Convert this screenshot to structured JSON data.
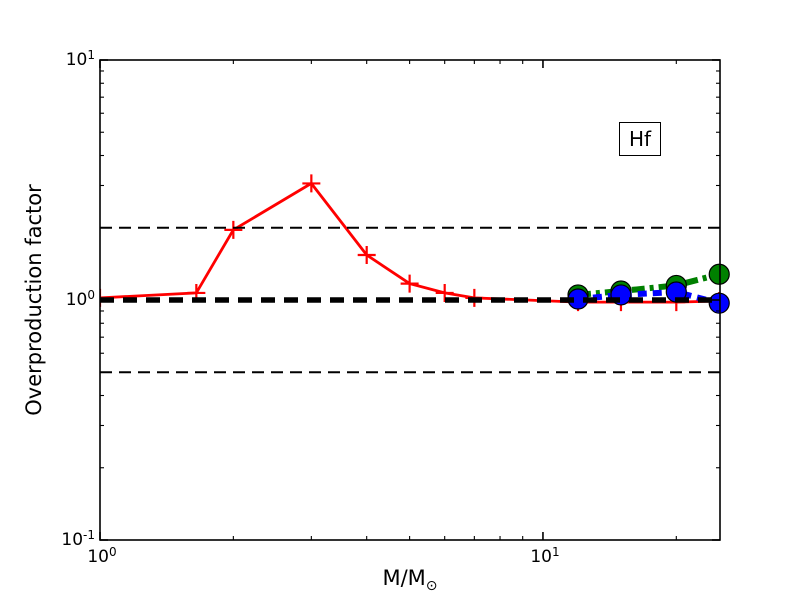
{
  "chart_data": {
    "type": "line",
    "xlabel": {
      "main": "M/M",
      "sub": "⊙"
    },
    "ylabel": "Overproduction factor",
    "x_scale": "log",
    "y_scale": "log",
    "xlim": [
      1,
      25.1
    ],
    "ylim": [
      0.1,
      10
    ],
    "grid": false,
    "legend": "none",
    "annotation": {
      "text": "Hf"
    },
    "x_ticks": {
      "major": [
        1,
        10
      ],
      "minor": [
        2,
        3,
        4,
        5,
        6,
        7,
        8,
        9,
        20
      ],
      "labels": [
        {
          "base": "10",
          "exp": "0",
          "value": 1
        },
        {
          "base": "10",
          "exp": "1",
          "value": 10
        }
      ]
    },
    "y_ticks": {
      "major": [
        0.1,
        1,
        10
      ],
      "minor": [
        0.2,
        0.3,
        0.4,
        0.5,
        0.6,
        0.7,
        0.8,
        0.9,
        2,
        3,
        4,
        5,
        6,
        7,
        8,
        9
      ],
      "labels": [
        {
          "base": "10",
          "exp": "1",
          "value": 10
        },
        {
          "base": "10",
          "exp": "0",
          "value": 1
        },
        {
          "base": "10",
          "exp": "-1",
          "value": 0.1
        }
      ]
    },
    "reference_lines": [
      {
        "name": "upper-tolerance-line",
        "y": 2,
        "color": "#000000",
        "style": "dashed",
        "width": 2
      },
      {
        "name": "unity-line",
        "y": 1,
        "color": "#000000",
        "style": "dashed",
        "width": 5.5
      },
      {
        "name": "lower-tolerance-line",
        "y": 0.5,
        "color": "#000000",
        "style": "dashed",
        "width": 2
      }
    ],
    "series": [
      {
        "name": "red-solid-plus",
        "color": "#ff0000",
        "style": "solid",
        "marker": "plus",
        "x": [
          1.0,
          1.65,
          2.0,
          3.0,
          4.0,
          5.0,
          6.0,
          7.0,
          12.0,
          15.0,
          20.0,
          25.0
        ],
        "y": [
          1.02,
          1.07,
          1.96,
          3.06,
          1.54,
          1.17,
          1.07,
          1.02,
          0.98,
          0.98,
          0.98,
          0.99
        ]
      },
      {
        "name": "green-dashdot-circle",
        "color": "#008000",
        "style": "dashdot",
        "marker": "circle",
        "x": [
          12.0,
          15.0,
          20.0,
          25.0
        ],
        "y": [
          1.05,
          1.09,
          1.15,
          1.28
        ]
      },
      {
        "name": "blue-dashed-circle",
        "color": "#0000ff",
        "style": "dashed",
        "marker": "circle",
        "x": [
          12.0,
          15.0,
          20.0,
          25.0
        ],
        "y": [
          1.01,
          1.05,
          1.08,
          0.97
        ]
      }
    ]
  }
}
